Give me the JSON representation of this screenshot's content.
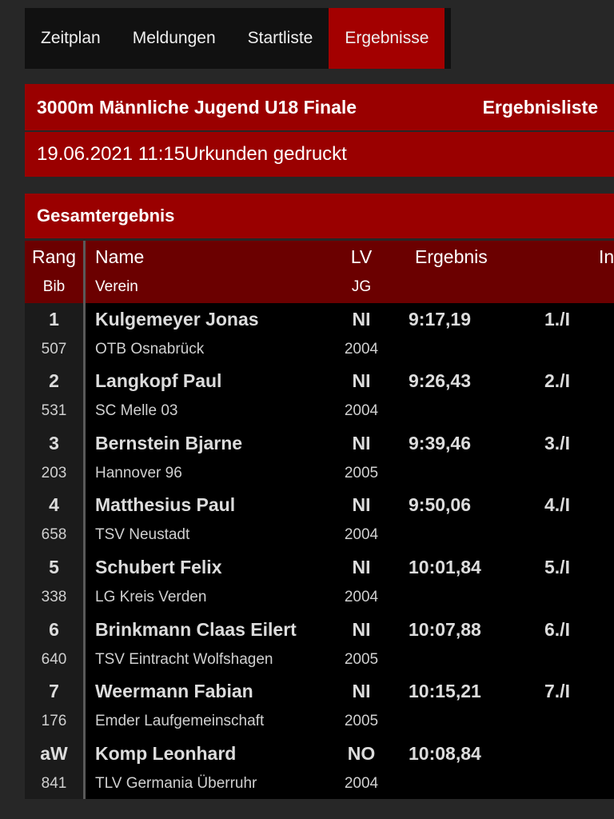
{
  "nav": {
    "tabs": [
      {
        "label": "Zeitplan"
      },
      {
        "label": "Meldungen"
      },
      {
        "label": "Startliste"
      },
      {
        "label": "Ergebnisse"
      }
    ]
  },
  "header": {
    "event_title": "3000m Männliche Jugend U18 Finale",
    "list_type": "Ergebnisliste",
    "datetime": "19.06.2021 11:15",
    "status": "Urkunden gedruckt"
  },
  "section": {
    "title": "Gesamtergebnis"
  },
  "table": {
    "columns": {
      "rang": "Rang",
      "bib": "Bib",
      "name": "Name",
      "verein": "Verein",
      "lv": "LV",
      "jg": "JG",
      "ergebnis": "Ergebnis",
      "extra": "In"
    },
    "rows": [
      {
        "rank": "1",
        "bib": "507",
        "name": "Kulgemeyer Jonas",
        "club": "OTB Osnabrück",
        "lv": "NI",
        "year": "2004",
        "result": "9:17,19",
        "place": "1./I"
      },
      {
        "rank": "2",
        "bib": "531",
        "name": "Langkopf Paul",
        "club": "SC Melle 03",
        "lv": "NI",
        "year": "2004",
        "result": "9:26,43",
        "place": "2./I"
      },
      {
        "rank": "3",
        "bib": "203",
        "name": "Bernstein Bjarne",
        "club": "Hannover 96",
        "lv": "NI",
        "year": "2005",
        "result": "9:39,46",
        "place": "3./I"
      },
      {
        "rank": "4",
        "bib": "658",
        "name": "Matthesius Paul",
        "club": "TSV Neustadt",
        "lv": "NI",
        "year": "2004",
        "result": "9:50,06",
        "place": "4./I"
      },
      {
        "rank": "5",
        "bib": "338",
        "name": "Schubert Felix",
        "club": "LG Kreis Verden",
        "lv": "NI",
        "year": "2004",
        "result": "10:01,84",
        "place": "5./I"
      },
      {
        "rank": "6",
        "bib": "640",
        "name": "Brinkmann Claas Eilert",
        "club": "TSV Eintracht Wolfshagen",
        "lv": "NI",
        "year": "2005",
        "result": "10:07,88",
        "place": "6./I"
      },
      {
        "rank": "7",
        "bib": "176",
        "name": "Weermann Fabian",
        "club": "Emder Laufgemeinschaft",
        "lv": "NI",
        "year": "2005",
        "result": "10:15,21",
        "place": "7./I"
      },
      {
        "rank": "aW",
        "bib": "841",
        "name": "Komp Leonhard",
        "club": "TLV Germania Überruhr",
        "lv": "NO",
        "year": "2004",
        "result": "10:08,84",
        "place": ""
      }
    ]
  }
}
